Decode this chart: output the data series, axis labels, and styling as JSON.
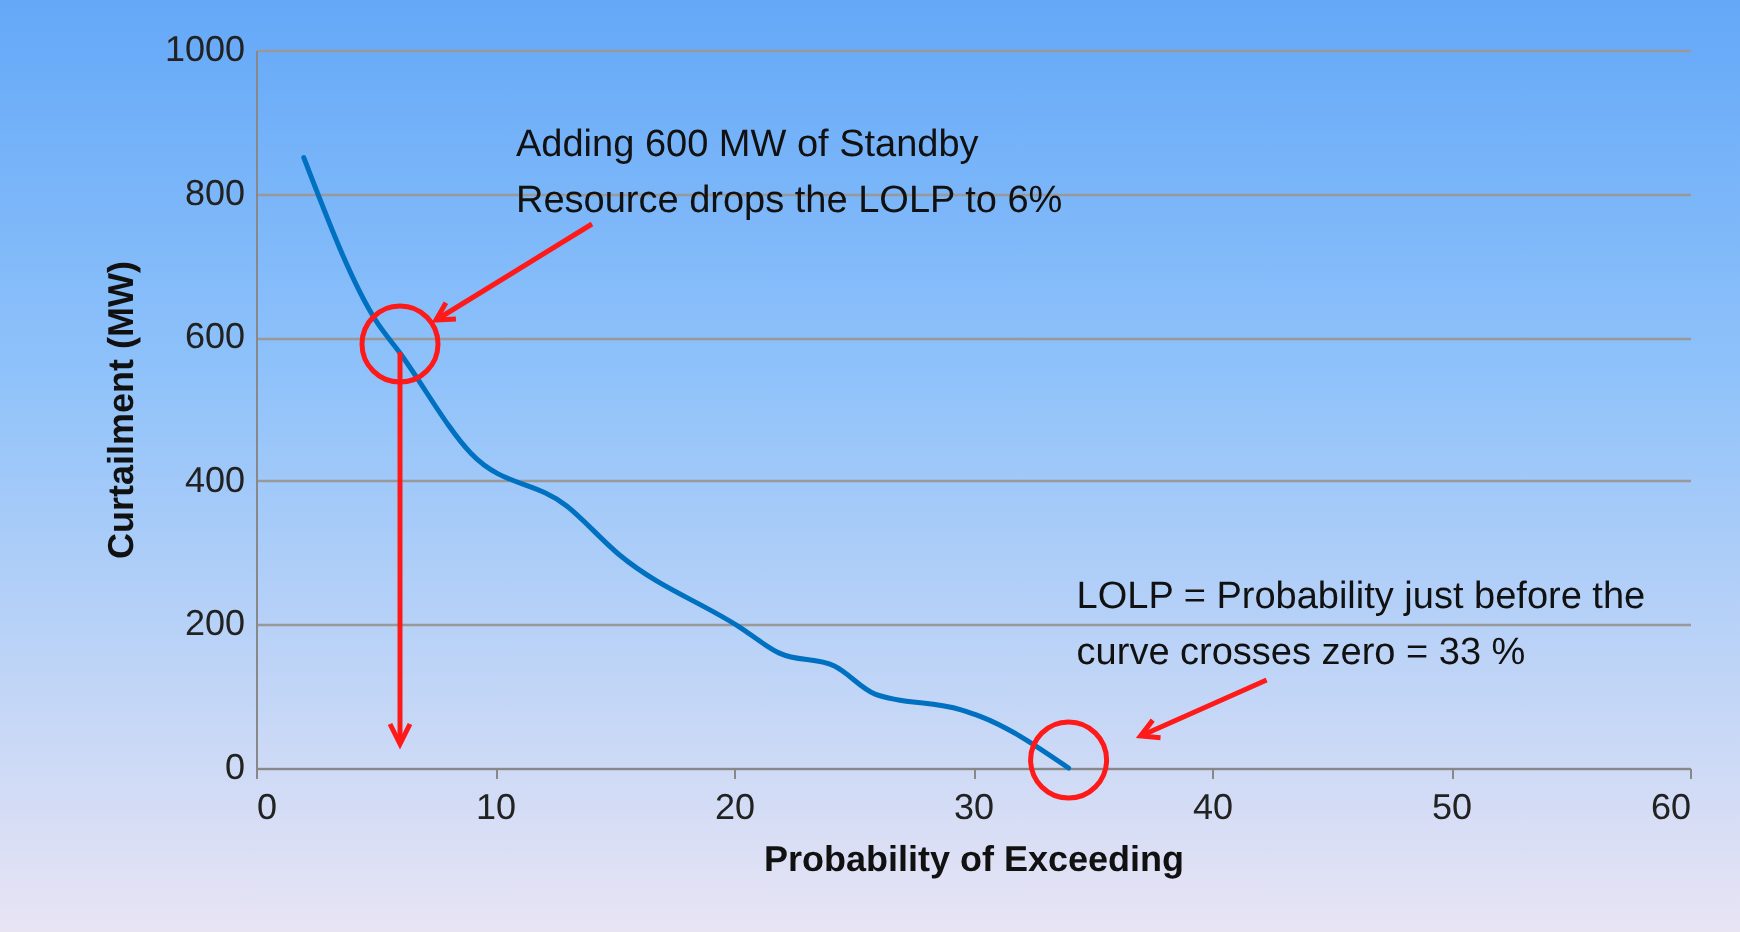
{
  "chart_data": {
    "type": "line",
    "xlabel": "Probability of Exceeding",
    "ylabel": "Curtailment (MW)",
    "x": [
      2,
      5,
      6,
      9,
      13,
      15.2,
      20.2,
      21.9,
      24.2,
      25.9,
      29.5,
      30.3,
      34
    ],
    "series": [
      {
        "color": "#0070c0",
        "values": [
          850,
          624,
          579,
          438,
          365,
          297,
          197,
          160,
          142,
          103,
          81,
          72,
          0
        ]
      }
    ],
    "xlim": [
      0,
      60
    ],
    "xticks": [
      0,
      10,
      20,
      30,
      40,
      50,
      60
    ],
    "ylim": [
      0,
      1000
    ],
    "yticks": [
      0,
      200,
      400,
      600,
      800,
      1000
    ],
    "grid": "y",
    "legend": false,
    "marker": "none",
    "line_style": "solid",
    "annotations": [
      "Adding 600 MW of Standby\nResource drops the LOLP to 6%",
      {
        "text": "LOLP = Probability just before the\ncurve crosses zero = 33 %",
        "x": 34,
        "y": 0
      }
    ]
  }
}
